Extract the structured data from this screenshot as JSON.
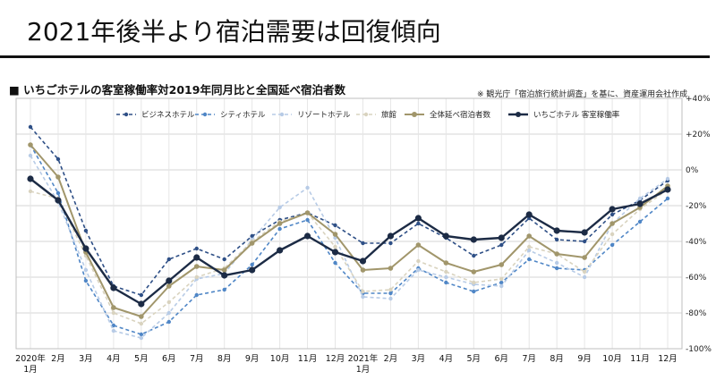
{
  "header": {
    "title": "2021年後半より宿泊需要は回復傾向",
    "subtitle": "■ いちごホテルの客室稼働率対2019年同月比と全国延べ宿泊者数",
    "source": "※ 観光庁「宿泊旅行統計調査」を基に、資産運用会社作成"
  },
  "chart_data": {
    "type": "line",
    "title": "",
    "xlabel": "",
    "ylabel": "",
    "ylim": [
      -100,
      40
    ],
    "yticks": [
      40,
      20,
      0,
      -20,
      -40,
      -60,
      -80,
      -100
    ],
    "ytick_labels": [
      "+40%",
      "+20%",
      "0%",
      "-20%",
      "-40%",
      "-60%",
      "-80%",
      "-100%"
    ],
    "categories": [
      [
        "2020年",
        "1月"
      ],
      [
        "2月"
      ],
      [
        "3月"
      ],
      [
        "4月"
      ],
      [
        "5月"
      ],
      [
        "6月"
      ],
      [
        "7月"
      ],
      [
        "8月"
      ],
      [
        "9月"
      ],
      [
        "10月"
      ],
      [
        "11月"
      ],
      [
        "12月"
      ],
      [
        "2021年",
        "1月"
      ],
      [
        "2月"
      ],
      [
        "3月"
      ],
      [
        "4月"
      ],
      [
        "5月"
      ],
      [
        "6月"
      ],
      [
        "7月"
      ],
      [
        "8月"
      ],
      [
        "9月"
      ],
      [
        "10月"
      ],
      [
        "11月"
      ],
      [
        "12月"
      ]
    ],
    "grid": true,
    "legend_position": "top",
    "series": [
      {
        "name": "ビジネスホテル",
        "color": "#2e4f86",
        "dash": "dash",
        "width": 1.6,
        "values": [
          24,
          6,
          -34,
          -65,
          -70,
          -50,
          -44,
          -50,
          -37,
          -28,
          -24,
          -31,
          -41,
          -41,
          -30,
          -38,
          -48,
          -42,
          -27,
          -39,
          -40,
          -25,
          -17,
          -6
        ]
      },
      {
        "name": "シティホテル",
        "color": "#4f86c6",
        "dash": "dash",
        "width": 1.6,
        "values": [
          14,
          -13,
          -62,
          -87,
          -92,
          -85,
          -70,
          -67,
          -53,
          -33,
          -28,
          -52,
          -69,
          -69,
          -55,
          -63,
          -68,
          -63,
          -50,
          -55,
          -56,
          -42,
          -29,
          -16
        ]
      },
      {
        "name": "リゾートホテル",
        "color": "#b7cbe6",
        "dash": "dash",
        "width": 1.6,
        "values": [
          8,
          -18,
          -56,
          -90,
          -94,
          -80,
          -61,
          -58,
          -39,
          -21,
          -10,
          -38,
          -71,
          -72,
          -56,
          -60,
          -64,
          -65,
          -45,
          -52,
          -60,
          -30,
          -16,
          -5
        ]
      },
      {
        "name": "旅館",
        "color": "#d9d3bf",
        "dash": "dash",
        "width": 1.6,
        "values": [
          -12,
          -16,
          -48,
          -80,
          -86,
          -74,
          -60,
          -55,
          -40,
          -29,
          -24,
          -43,
          -68,
          -67,
          -51,
          -57,
          -63,
          -61,
          -43,
          -47,
          -57,
          -36,
          -22,
          -11
        ]
      },
      {
        "name": "全体延べ宿泊者数",
        "color": "#a1966b",
        "dash": "solid",
        "width": 2,
        "values": [
          14,
          -4,
          -46,
          -77,
          -82,
          -65,
          -54,
          -56,
          -41,
          -30,
          -24,
          -36,
          -56,
          -55,
          -42,
          -52,
          -57,
          -53,
          -37,
          -47,
          -49,
          -30,
          -21,
          -9
        ]
      },
      {
        "name": "いちごホテル 客室稼働率",
        "color": "#1c2b45",
        "dash": "solid",
        "width": 2.4,
        "values": [
          -5,
          -17,
          -44,
          -66,
          -75,
          -62,
          -49,
          -59,
          -56,
          -45,
          -37,
          -46,
          -51,
          -37,
          -27,
          -37,
          -39,
          -38,
          -25,
          -34,
          -35,
          -22,
          -19,
          -11
        ]
      }
    ]
  }
}
